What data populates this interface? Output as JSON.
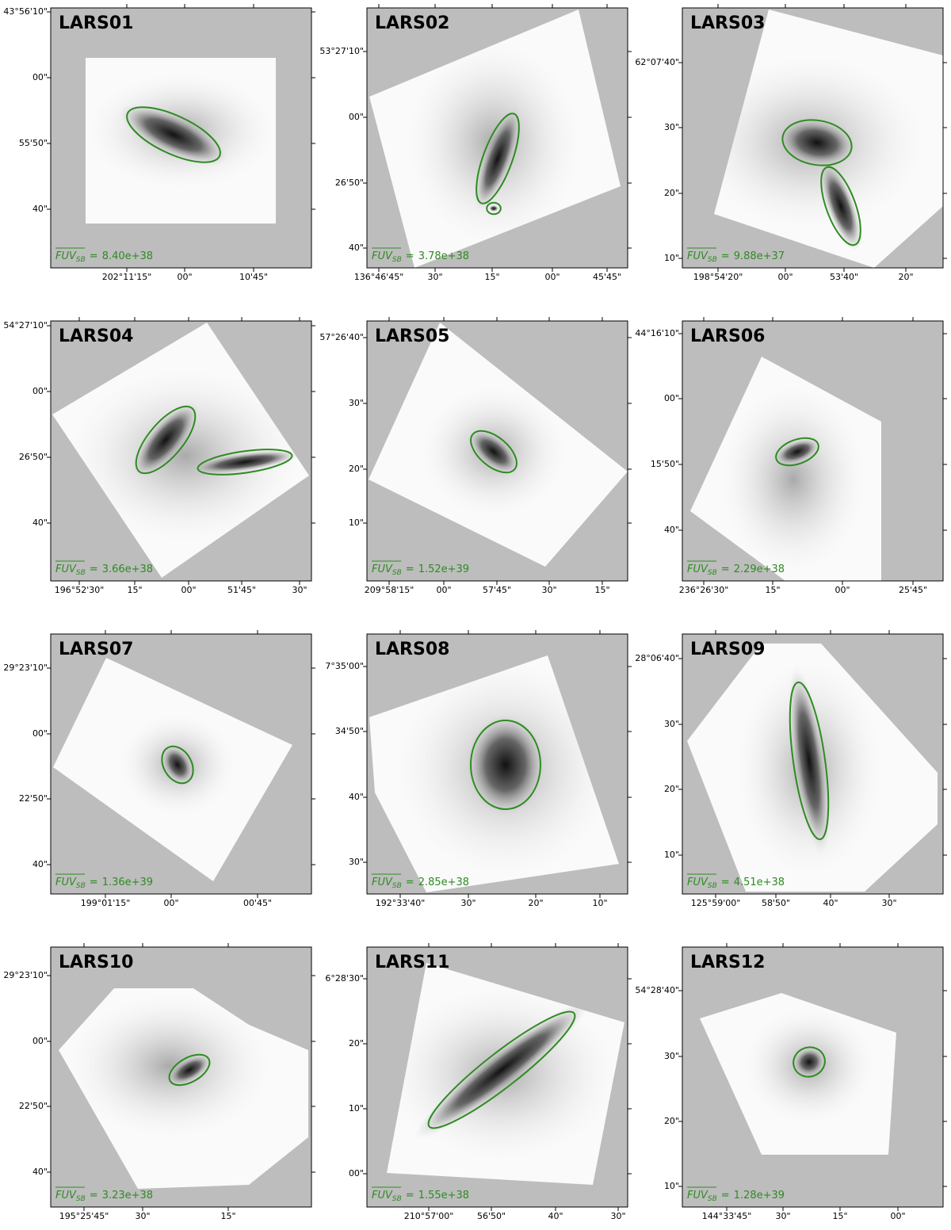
{
  "fuv_label": "FUV",
  "fuv_subscript": "SB",
  "equals": "=",
  "panels": [
    {
      "title": "LARS01",
      "fuv_value": "8.40e+38",
      "y_ticks": [
        "43°56'10\"",
        "00\"",
        "55'50\"",
        "40\""
      ],
      "x_ticks": [
        "202°11'15\"",
        "00\"",
        "10'45\""
      ]
    },
    {
      "title": "LARS02",
      "fuv_value": "3.78e+38",
      "y_ticks": [
        "53°27'10\"",
        "00\"",
        "26'50\"",
        "40\""
      ],
      "x_ticks": [
        "136°46'45\"",
        "30\"",
        "15\"",
        "00\"",
        "45'45\""
      ]
    },
    {
      "title": "LARS03",
      "fuv_value": "9.88e+37",
      "y_ticks": [
        "62°07'40\"",
        "30\"",
        "20\"",
        "10\""
      ],
      "x_ticks": [
        "198°54'20\"",
        "00\"",
        "53'40\"",
        "20\""
      ]
    },
    {
      "title": "LARS04",
      "fuv_value": "3.66e+38",
      "y_ticks": [
        "54°27'10\"",
        "00\"",
        "26'50\"",
        "40\""
      ],
      "x_ticks": [
        "196°52'30\"",
        "15\"",
        "00\"",
        "51'45\"",
        "30\""
      ]
    },
    {
      "title": "LARS05",
      "fuv_value": "1.52e+39",
      "y_ticks": [
        "57°26'40\"",
        "30\"",
        "20\"",
        "10\""
      ],
      "x_ticks": [
        "209°58'15\"",
        "00\"",
        "57'45\"",
        "30\"",
        "15\""
      ]
    },
    {
      "title": "LARS06",
      "fuv_value": "2.29e+38",
      "y_ticks": [
        "44°16'10\"",
        "00\"",
        "15'50\"",
        "40\""
      ],
      "x_ticks": [
        "236°26'30\"",
        "15\"",
        "00\"",
        "25'45\""
      ]
    },
    {
      "title": "LARS07",
      "fuv_value": "1.36e+39",
      "y_ticks": [
        "29°23'10\"",
        "00\"",
        "22'50\"",
        "40\""
      ],
      "x_ticks": [
        "199°01'15\"",
        "00\"",
        "00'45\""
      ]
    },
    {
      "title": "LARS08",
      "fuv_value": "2.85e+38",
      "y_ticks": [
        "7°35'00\"",
        "34'50\"",
        "40\"",
        "30\""
      ],
      "x_ticks": [
        "192°33'40\"",
        "30\"",
        "20\"",
        "10\""
      ]
    },
    {
      "title": "LARS09",
      "fuv_value": "4.51e+38",
      "y_ticks": [
        "28°06'40\"",
        "30\"",
        "20\"",
        "10\""
      ],
      "x_ticks": [
        "125°59'00\"",
        "58'50\"",
        "40\"",
        "30\""
      ]
    },
    {
      "title": "LARS10",
      "fuv_value": "3.23e+38",
      "y_ticks": [
        "29°23'10\"",
        "00\"",
        "22'50\"",
        "40\""
      ],
      "x_ticks": [
        "195°25'45\"",
        "30\"",
        "15\""
      ]
    },
    {
      "title": "LARS11",
      "fuv_value": "1.55e+38",
      "y_ticks": [
        "6°28'30\"",
        "20\"",
        "10\"",
        "00\""
      ],
      "x_ticks": [
        "210°57'00\"",
        "56'50\"",
        "40\"",
        "30\""
      ]
    },
    {
      "title": "LARS12",
      "fuv_value": "1.28e+39",
      "y_ticks": [
        "54°28'40\"",
        "30\"",
        "20\"",
        "10\""
      ],
      "x_ticks": [
        "144°33'45\"",
        "30\"",
        "15\"",
        "00\""
      ]
    }
  ]
}
